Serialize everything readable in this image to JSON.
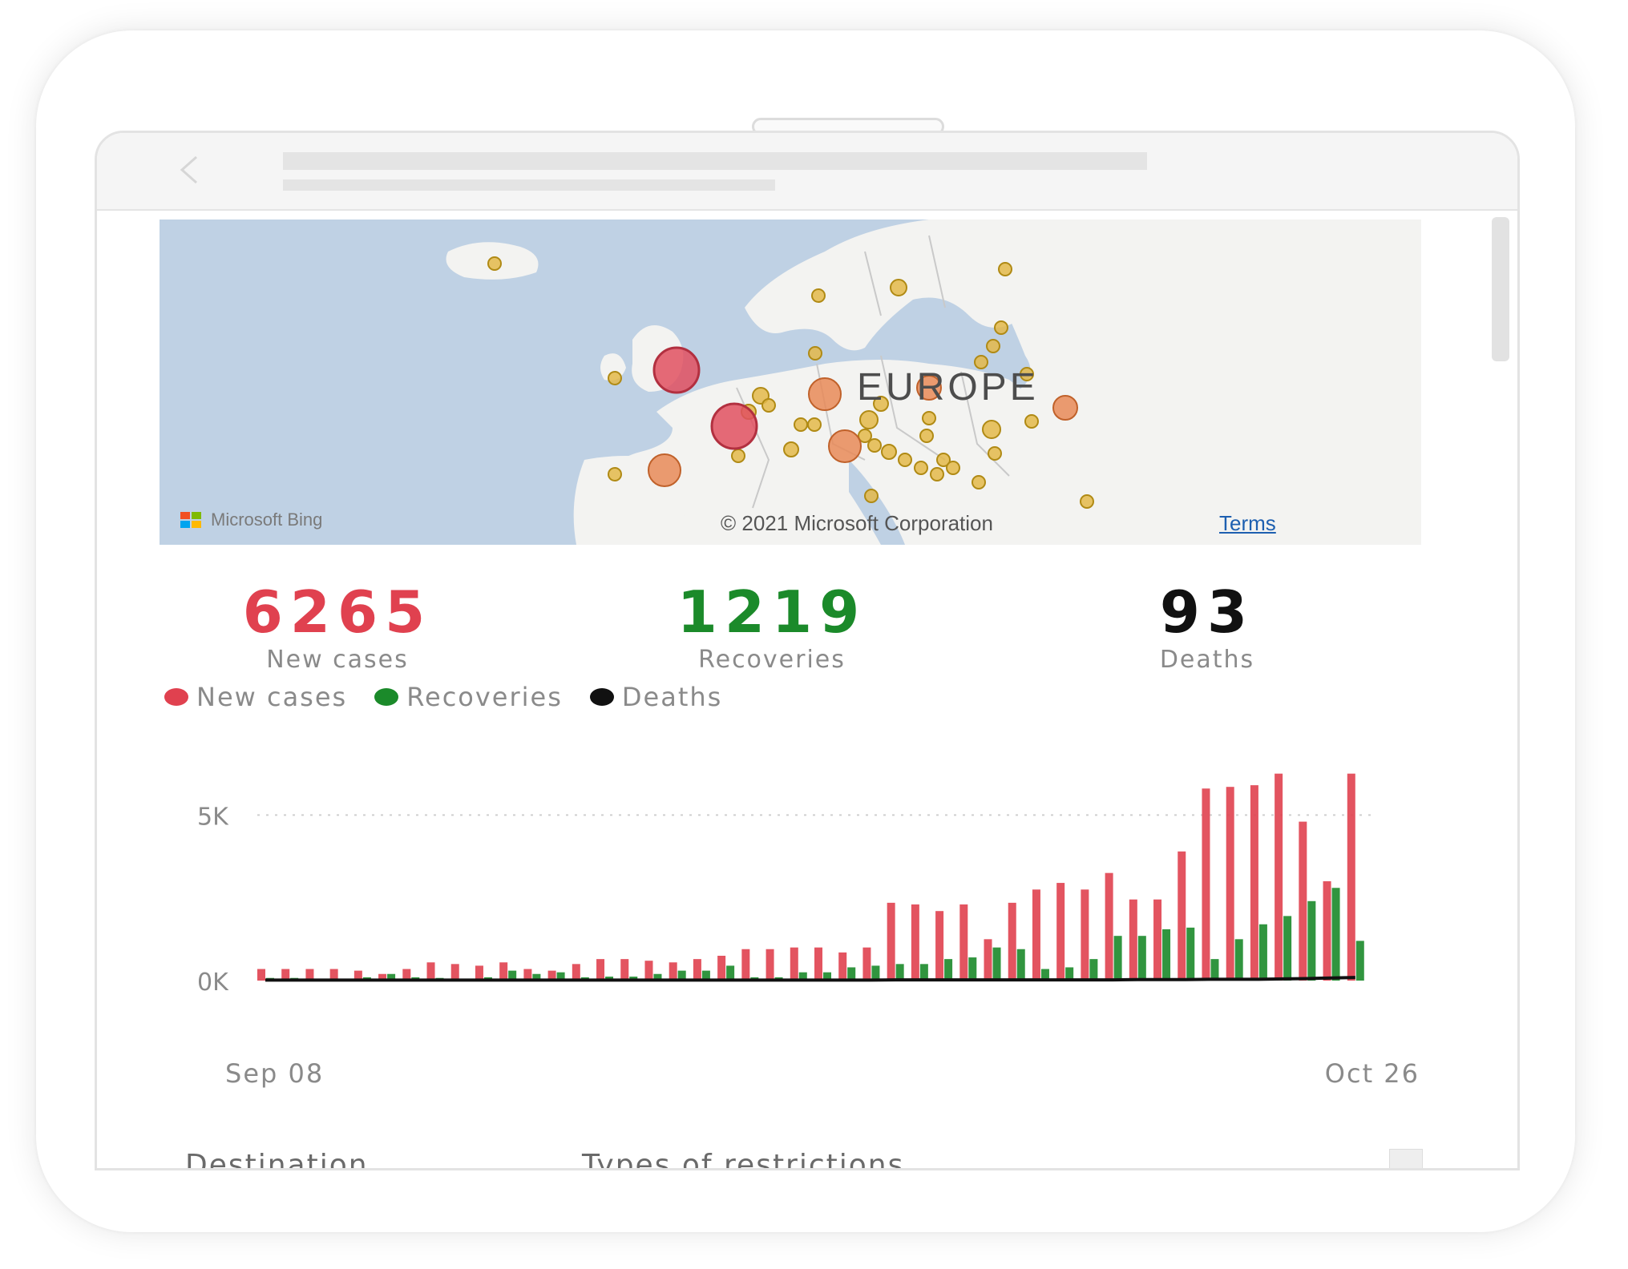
{
  "map": {
    "region_label": "EUROPE",
    "provider": "Microsoft Bing",
    "copyright": "© 2021 Microsoft Corporation",
    "terms_link": "Terms",
    "colors": {
      "water": "#bfd1e4",
      "land": "#f3f3f1"
    }
  },
  "kpis": [
    {
      "value": "6265",
      "label": "New cases",
      "color": "#e0414f"
    },
    {
      "value": "1219",
      "label": "Recoveries",
      "color": "#1b8a2a"
    },
    {
      "value": "93",
      "label": "Deaths",
      "color": "#111111"
    }
  ],
  "legend": [
    {
      "label": "New cases",
      "color": "#e0414f"
    },
    {
      "label": "Recoveries",
      "color": "#1b8a2a"
    },
    {
      "label": "Deaths",
      "color": "#111111"
    }
  ],
  "chart_data": {
    "type": "bar",
    "y_ticks": [
      "5K",
      "0K"
    ],
    "ylim": [
      0,
      6000
    ],
    "x_start_label": "Sep 08",
    "x_end_label": "Oct 26",
    "series": [
      {
        "name": "New cases",
        "color": "#e0414f",
        "values": [
          350,
          350,
          350,
          350,
          300,
          200,
          350,
          550,
          500,
          450,
          550,
          350,
          300,
          500,
          650,
          650,
          600,
          550,
          650,
          750,
          950,
          950,
          1000,
          1000,
          850,
          1000,
          2350,
          2300,
          2100,
          2300,
          1250,
          2350,
          2750,
          2950,
          2750,
          3250,
          2450,
          2450,
          3900,
          5800,
          5850,
          5900,
          6250,
          4800,
          3000,
          6250
        ]
      },
      {
        "name": "Recoveries",
        "color": "#1b8a2a",
        "values": [
          80,
          80,
          50,
          50,
          100,
          200,
          100,
          80,
          50,
          100,
          300,
          200,
          250,
          100,
          120,
          120,
          200,
          300,
          300,
          450,
          100,
          100,
          250,
          250,
          400,
          450,
          500,
          500,
          650,
          700,
          1000,
          950,
          350,
          400,
          650,
          1350,
          1350,
          1550,
          1600,
          650,
          1250,
          1700,
          1950,
          2400,
          2800,
          1200
        ]
      },
      {
        "name": "Deaths",
        "color": "#111111",
        "values": [
          15,
          15,
          15,
          15,
          15,
          15,
          15,
          15,
          15,
          15,
          15,
          15,
          15,
          15,
          15,
          15,
          15,
          15,
          15,
          15,
          15,
          15,
          15,
          15,
          15,
          15,
          20,
          20,
          20,
          20,
          20,
          20,
          20,
          20,
          20,
          20,
          30,
          30,
          30,
          40,
          40,
          40,
          50,
          60,
          80,
          93
        ]
      }
    ]
  },
  "table": {
    "col_destination": "Destination",
    "col_restrictions": "Types of restrictions"
  }
}
